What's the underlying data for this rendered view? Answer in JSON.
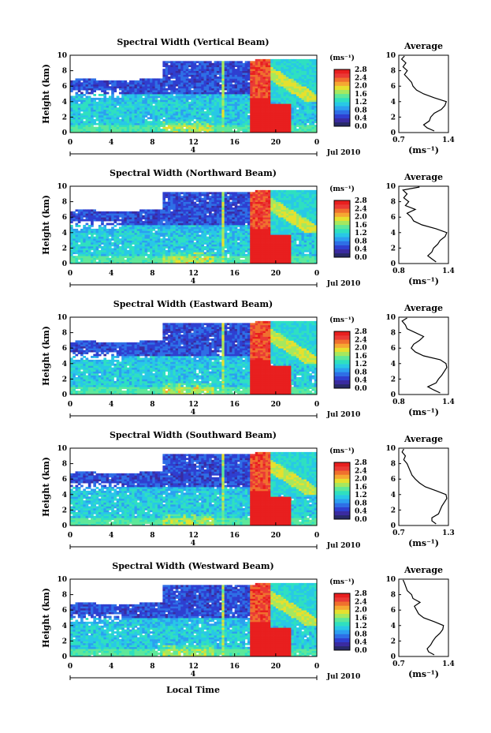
{
  "figure": {
    "xlabel": "Local Time",
    "date_label": "Jul 2010",
    "day_marker": "4",
    "ylabel": "Height (km)",
    "unit_label": "(ms⁻¹)",
    "avg_title": "Average",
    "avg_xlabel": "(ms⁻¹)"
  },
  "colors": {
    "colorbar": [
      "#282a68",
      "#3a2ba0",
      "#2f3fd0",
      "#2e6fe6",
      "#2c9ff0",
      "#28c8e6",
      "#2fe0c0",
      "#5ee89a",
      "#a6e85e",
      "#e6e02e",
      "#f5a832",
      "#f0702e",
      "#ea3a36",
      "#e81f1f"
    ],
    "background": "#ffffff"
  },
  "chart_data": [
    {
      "type": "heatmap",
      "title": "Spectral Width (Vertical Beam)",
      "x_ticks": [
        "0",
        "4",
        "8",
        "12",
        "16",
        "20",
        "0"
      ],
      "xlim": [
        0,
        24
      ],
      "y_ticks": [
        "0",
        "2",
        "4",
        "6",
        "8",
        "10"
      ],
      "ylim": [
        0,
        10
      ],
      "colorbar_ticks": [
        "0.0",
        "0.4",
        "0.8",
        "1.2",
        "1.6",
        "2.0",
        "2.4",
        "2.8"
      ],
      "colorbar_range": [
        0,
        2.8
      ],
      "average_profile": {
        "title": "Average",
        "x_ticks": [
          "0.7",
          "1.4"
        ],
        "xlim": [
          0.7,
          1.4
        ],
        "y_ticks": [
          "0",
          "2",
          "4",
          "6",
          "8",
          "10"
        ],
        "height_km": [
          0.2,
          0.6,
          1.0,
          1.5,
          2.0,
          2.5,
          3.0,
          3.5,
          4.0,
          4.5,
          5.0,
          5.5,
          6.0,
          6.5,
          7.0,
          7.5,
          8.0,
          8.5,
          9.0,
          9.5,
          9.9
        ],
        "width_ms": [
          1.2,
          1.1,
          1.05,
          1.13,
          1.15,
          1.2,
          1.3,
          1.35,
          1.37,
          1.2,
          1.05,
          0.95,
          0.9,
          0.88,
          0.83,
          0.78,
          0.82,
          0.76,
          0.8,
          0.74,
          0.78
        ]
      }
    },
    {
      "type": "heatmap",
      "title": "Spectral Width (Northward Beam)",
      "x_ticks": [
        "0",
        "4",
        "8",
        "12",
        "16",
        "20",
        "0"
      ],
      "xlim": [
        0,
        24
      ],
      "y_ticks": [
        "0",
        "2",
        "4",
        "6",
        "8",
        "10"
      ],
      "ylim": [
        0,
        10
      ],
      "colorbar_ticks": [
        "0.0",
        "0.4",
        "0.8",
        "1.2",
        "1.6",
        "2.0",
        "2.4",
        "2.8"
      ],
      "colorbar_range": [
        0,
        2.8
      ],
      "average_profile": {
        "title": "Average",
        "x_ticks": [
          "0.8",
          "1.4"
        ],
        "xlim": [
          0.8,
          1.4
        ],
        "y_ticks": [
          "0",
          "2",
          "4",
          "6",
          "8",
          "10"
        ],
        "height_km": [
          0.2,
          0.6,
          1.0,
          1.5,
          2.0,
          2.5,
          3.0,
          3.5,
          4.0,
          4.5,
          5.0,
          5.5,
          6.0,
          6.5,
          7.0,
          7.5,
          8.0,
          8.5,
          9.0,
          9.5,
          9.9
        ],
        "width_ms": [
          1.25,
          1.2,
          1.15,
          1.2,
          1.22,
          1.27,
          1.3,
          1.36,
          1.38,
          1.25,
          1.08,
          0.98,
          0.95,
          0.9,
          1.0,
          0.88,
          0.92,
          0.86,
          0.9,
          0.85,
          1.05
        ]
      }
    },
    {
      "type": "heatmap",
      "title": "Spectral Width (Eastward Beam)",
      "x_ticks": [
        "0",
        "4",
        "8",
        "12",
        "16",
        "20",
        "0"
      ],
      "xlim": [
        0,
        24
      ],
      "y_ticks": [
        "0",
        "2",
        "4",
        "6",
        "8",
        "10"
      ],
      "ylim": [
        0,
        10
      ],
      "colorbar_ticks": [
        "0.0",
        "0.4",
        "0.8",
        "1.2",
        "1.6",
        "2.0",
        "2.4",
        "2.8"
      ],
      "colorbar_range": [
        0,
        2.8
      ],
      "average_profile": {
        "title": "Average",
        "x_ticks": [
          "0.8",
          "1.4"
        ],
        "xlim": [
          0.8,
          1.4
        ],
        "y_ticks": [
          "0",
          "2",
          "4",
          "6",
          "8",
          "10"
        ],
        "height_km": [
          0.2,
          0.6,
          1.0,
          1.5,
          2.0,
          2.5,
          3.0,
          3.5,
          4.0,
          4.5,
          5.0,
          5.5,
          6.0,
          6.5,
          7.0,
          7.5,
          8.0,
          8.5,
          9.0,
          9.5,
          9.9
        ],
        "width_ms": [
          1.3,
          1.22,
          1.15,
          1.25,
          1.28,
          1.32,
          1.35,
          1.38,
          1.37,
          1.3,
          1.1,
          1.0,
          0.95,
          0.98,
          1.05,
          1.1,
          1.0,
          0.9,
          0.88,
          0.84,
          0.9
        ]
      }
    },
    {
      "type": "heatmap",
      "title": "Spectral Width (Southward Beam)",
      "x_ticks": [
        "0",
        "4",
        "8",
        "12",
        "16",
        "20",
        "0"
      ],
      "xlim": [
        0,
        24
      ],
      "y_ticks": [
        "0",
        "2",
        "4",
        "6",
        "8",
        "10"
      ],
      "ylim": [
        0,
        10
      ],
      "colorbar_ticks": [
        "0.0",
        "0.4",
        "0.8",
        "1.2",
        "1.6",
        "2.0",
        "2.4",
        "2.8"
      ],
      "colorbar_range": [
        0,
        2.8
      ],
      "average_profile": {
        "title": "Average",
        "x_ticks": [
          "0.7",
          "1.3"
        ],
        "xlim": [
          0.7,
          1.3
        ],
        "y_ticks": [
          "0",
          "2",
          "4",
          "6",
          "8",
          "10"
        ],
        "height_km": [
          0.2,
          0.6,
          1.0,
          1.5,
          2.0,
          2.5,
          3.0,
          3.5,
          4.0,
          4.5,
          5.0,
          5.5,
          6.0,
          6.5,
          7.0,
          7.5,
          8.0,
          8.5,
          9.0,
          9.5,
          9.9
        ],
        "width_ms": [
          1.15,
          1.1,
          1.1,
          1.18,
          1.2,
          1.22,
          1.25,
          1.28,
          1.27,
          1.15,
          1.02,
          0.95,
          0.9,
          0.86,
          0.84,
          0.82,
          0.8,
          0.76,
          0.78,
          0.74,
          0.76
        ]
      }
    },
    {
      "type": "heatmap",
      "title": "Spectral Width (Westward Beam)",
      "x_ticks": [
        "0",
        "4",
        "8",
        "12",
        "16",
        "20",
        "0"
      ],
      "xlim": [
        0,
        24
      ],
      "y_ticks": [
        "0",
        "2",
        "4",
        "6",
        "8",
        "10"
      ],
      "ylim": [
        0,
        10
      ],
      "colorbar_ticks": [
        "0.0",
        "0.4",
        "0.8",
        "1.2",
        "1.6",
        "2.0",
        "2.4",
        "2.8"
      ],
      "colorbar_range": [
        0,
        2.8
      ],
      "average_profile": {
        "title": "Average",
        "x_ticks": [
          "0.7",
          "1.4"
        ],
        "xlim": [
          0.7,
          1.4
        ],
        "y_ticks": [
          "0",
          "2",
          "4",
          "6",
          "8",
          "10"
        ],
        "height_km": [
          0.2,
          0.6,
          1.0,
          1.5,
          2.0,
          2.5,
          3.0,
          3.5,
          4.0,
          4.5,
          5.0,
          5.5,
          6.0,
          6.5,
          7.0,
          7.5,
          8.0,
          8.5,
          9.0,
          9.5,
          9.9
        ],
        "width_ms": [
          1.2,
          1.12,
          1.1,
          1.15,
          1.18,
          1.22,
          1.28,
          1.32,
          1.33,
          1.2,
          1.05,
          0.98,
          0.95,
          0.92,
          1.0,
          0.9,
          0.88,
          0.82,
          0.8,
          0.78,
          0.76
        ]
      }
    }
  ]
}
